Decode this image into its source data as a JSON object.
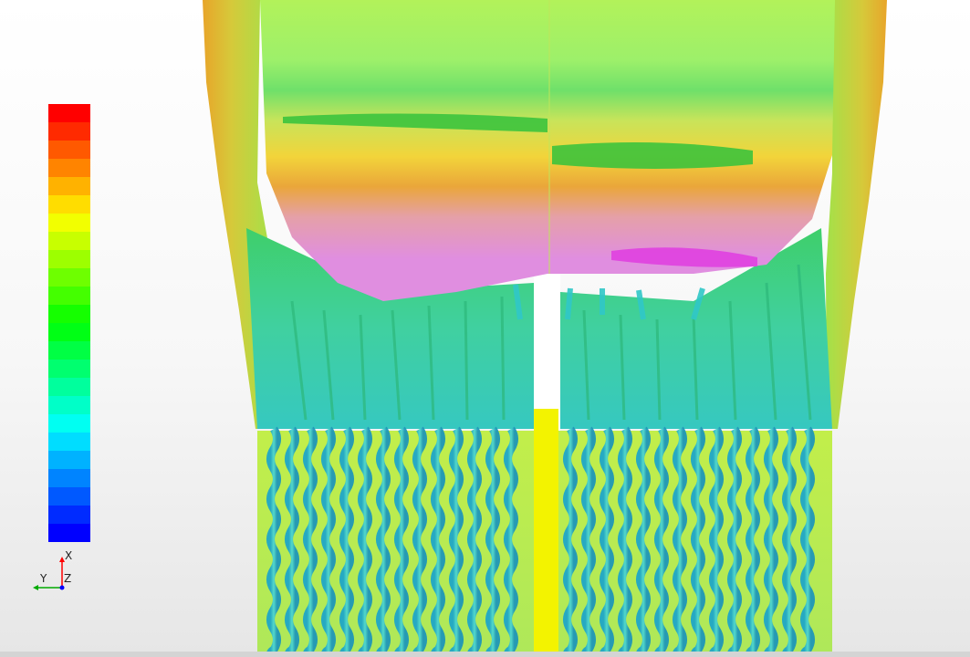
{
  "viewer": {
    "background_top": "#ffffff",
    "background_bottom": "#e6e6e6"
  },
  "colorbar": {
    "colormap": "rainbow-jet",
    "bands": 24,
    "top_color": "#ff0000",
    "bottom_color": "#0000ff",
    "tick_labels_visible": false
  },
  "axes_triad": {
    "x_label": "X",
    "y_label": "Y",
    "z_label": "Z",
    "x_color": "#ff0000",
    "y_color": "#00aa00",
    "z_color": "#0000ff"
  },
  "scene": {
    "description_icon": "cfd-isosurface-render",
    "dominant_colors": [
      "#b2f25a",
      "#8de868",
      "#3fcc3f",
      "#f0c030",
      "#e59a30",
      "#e090e0",
      "#e040e0",
      "#30c8c8",
      "#f3f300"
    ]
  }
}
